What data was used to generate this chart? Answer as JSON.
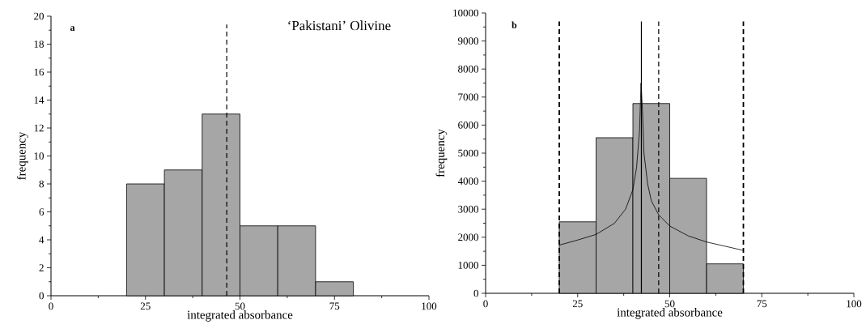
{
  "chart_data": [
    {
      "type": "histogram",
      "xlabel": "integrated absorbance",
      "ylabel": "frequency",
      "bins": [
        20,
        30,
        40,
        50,
        60,
        70,
        80
      ],
      "values": [
        8,
        9,
        13,
        5,
        5,
        1
      ],
      "color": "#a6a6a6",
      "xlim": [
        0,
        100
      ],
      "ylim": [
        0,
        20
      ],
      "xticks": [
        0,
        25,
        50,
        75,
        100
      ],
      "yticks": [
        0,
        2,
        4,
        6,
        8,
        10,
        12,
        14,
        16,
        18,
        20
      ],
      "ref_lines": [
        {
          "axis": "x",
          "value": 46.5,
          "label": null,
          "line_style": "dashed"
        }
      ],
      "annotations": [
        "a",
        "‘Pakistani’ Olivine"
      ]
    },
    {
      "type": "histogram",
      "xlabel": "integrated absorbance",
      "ylabel": "frequency",
      "bins": [
        20,
        30,
        40,
        50,
        60,
        70
      ],
      "values": [
        2550,
        5550,
        6770,
        4100,
        1050
      ],
      "color": "#a6a6a6",
      "series": [
        {
          "type": "line",
          "color": "#000000",
          "x": [
            20,
            25,
            30,
            35,
            38,
            40,
            41,
            41.8,
            42.2,
            42.6,
            43,
            44,
            45,
            47,
            50,
            55,
            60,
            65,
            70
          ],
          "values": [
            1720,
            1900,
            2100,
            2500,
            3000,
            3700,
            4500,
            5800,
            7500,
            6500,
            5000,
            3900,
            3300,
            2800,
            2400,
            2050,
            1830,
            1680,
            1530
          ]
        }
      ],
      "xlim": [
        0,
        100
      ],
      "ylim": [
        0,
        10000
      ],
      "xticks": [
        0,
        25,
        50,
        75,
        100
      ],
      "yticks": [
        0,
        1000,
        2000,
        3000,
        4000,
        5000,
        6000,
        7000,
        8000,
        9000,
        10000
      ],
      "ref_lines": [
        {
          "axis": "x",
          "value": 20,
          "label": null,
          "line_style": "dashed"
        },
        {
          "axis": "x",
          "value": 47,
          "label": null,
          "line_style": "dashed"
        },
        {
          "axis": "x",
          "value": 70,
          "label": null,
          "line_style": "dashed"
        },
        {
          "axis": "x",
          "value": 42.3,
          "label": null,
          "line_style": "solid"
        }
      ],
      "annotations": [
        "b"
      ]
    }
  ]
}
